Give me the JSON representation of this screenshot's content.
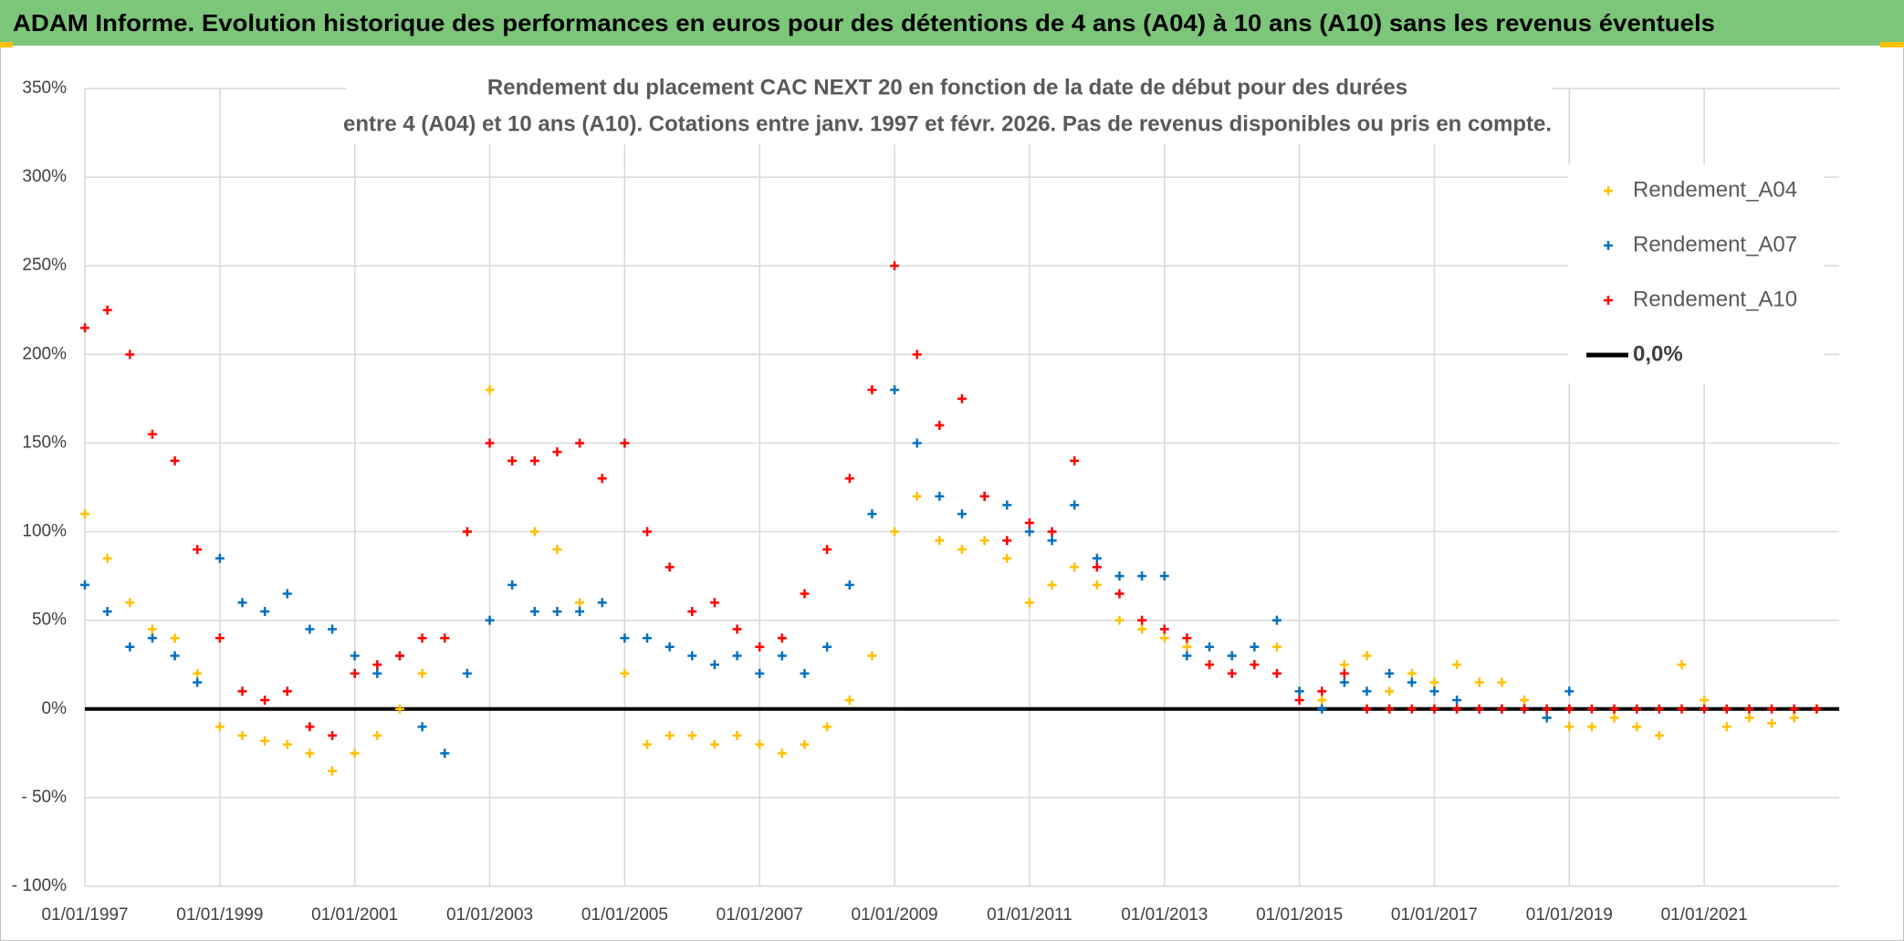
{
  "header": {
    "title": "ADAM Informe. Evolution historique des performances en euros pour des détentions de 4 ans (A04) à 10 ans (A10) sans les revenus éventuels"
  },
  "chart_data": {
    "type": "scatter",
    "title_lines": [
      "Rendement du placement CAC NEXT 20 en fonction de la date de début pour des durées",
      "entre 4 (A04) et 10 ans (A10). Cotations entre janv. 1997 et févr. 2026. Pas de revenus disponibles ou pris en compte."
    ],
    "x": [
      "01/01/1997",
      "01/05/1997",
      "01/09/1997",
      "01/01/1998",
      "01/05/1998",
      "01/09/1998",
      "01/01/1999",
      "01/05/1999",
      "01/09/1999",
      "01/01/2000",
      "01/05/2000",
      "01/09/2000",
      "01/01/2001",
      "01/05/2001",
      "01/09/2001",
      "01/01/2002",
      "01/05/2002",
      "01/09/2002",
      "01/01/2003",
      "01/05/2003",
      "01/09/2003",
      "01/01/2004",
      "01/05/2004",
      "01/09/2004",
      "01/01/2005",
      "01/05/2005",
      "01/09/2005",
      "01/01/2006",
      "01/05/2006",
      "01/09/2006",
      "01/01/2007",
      "01/05/2007",
      "01/09/2007",
      "01/01/2008",
      "01/05/2008",
      "01/09/2008",
      "01/01/2009",
      "01/05/2009",
      "01/09/2009",
      "01/01/2010",
      "01/05/2010",
      "01/09/2010",
      "01/01/2011",
      "01/05/2011",
      "01/09/2011",
      "01/01/2012",
      "01/05/2012",
      "01/09/2012",
      "01/01/2013",
      "01/05/2013",
      "01/09/2013",
      "01/01/2014",
      "01/05/2014",
      "01/09/2014",
      "01/01/2015",
      "01/05/2015",
      "01/09/2015",
      "01/01/2016",
      "01/05/2016",
      "01/09/2016",
      "01/01/2017",
      "01/05/2017",
      "01/09/2017",
      "01/01/2018",
      "01/05/2018",
      "01/09/2018",
      "01/01/2019",
      "01/05/2019",
      "01/09/2019",
      "01/01/2020",
      "01/05/2020",
      "01/09/2020",
      "01/01/2021",
      "01/05/2021",
      "01/09/2021",
      "01/01/2022",
      "01/05/2022",
      "01/09/2022"
    ],
    "series": [
      {
        "name": "Rendement_A04",
        "color": "#ffc000",
        "values": [
          110,
          85,
          60,
          45,
          40,
          20,
          -10,
          -15,
          -18,
          -20,
          -25,
          -35,
          -25,
          -15,
          0,
          20,
          40,
          100,
          180,
          140,
          100,
          90,
          60,
          60,
          20,
          -20,
          -15,
          -15,
          -20,
          -15,
          -20,
          -25,
          -20,
          -10,
          5,
          30,
          100,
          120,
          95,
          90,
          95,
          85,
          60,
          70,
          80,
          70,
          50,
          45,
          40,
          35,
          25,
          30,
          25,
          35,
          10,
          5,
          25,
          30,
          10,
          20,
          15,
          25,
          15,
          15,
          5,
          -5,
          -10,
          -10,
          -5,
          -10,
          -15,
          25,
          5,
          -10,
          -5,
          -8,
          -5,
          0
        ]
      },
      {
        "name": "Rendement_A07",
        "color": "#0070c0",
        "values": [
          70,
          55,
          35,
          40,
          30,
          15,
          85,
          60,
          55,
          65,
          45,
          45,
          30,
          20,
          30,
          -10,
          -25,
          20,
          50,
          70,
          55,
          55,
          55,
          60,
          40,
          40,
          35,
          30,
          25,
          30,
          20,
          30,
          20,
          35,
          70,
          110,
          180,
          150,
          120,
          110,
          120,
          115,
          100,
          95,
          115,
          85,
          75,
          75,
          75,
          30,
          35,
          30,
          35,
          50,
          10,
          0,
          15,
          10,
          20,
          15,
          10,
          5,
          0,
          0,
          0,
          -5,
          10,
          null,
          null,
          null,
          null,
          null,
          null,
          null,
          null,
          null,
          null,
          null
        ]
      },
      {
        "name": "Rendement_A10",
        "color": "#ff0000",
        "values": [
          215,
          225,
          200,
          155,
          140,
          90,
          40,
          10,
          5,
          10,
          -10,
          -15,
          20,
          25,
          30,
          40,
          40,
          100,
          150,
          140,
          140,
          145,
          150,
          130,
          150,
          100,
          80,
          55,
          60,
          45,
          35,
          40,
          65,
          90,
          130,
          180,
          250,
          200,
          160,
          175,
          120,
          95,
          105,
          100,
          140,
          80,
          65,
          50,
          45,
          40,
          25,
          20,
          25,
          20,
          5,
          10,
          20,
          0,
          0,
          0,
          0,
          0,
          0,
          0,
          0,
          0,
          0,
          0,
          0,
          0,
          0,
          0,
          0,
          0,
          0,
          0,
          0,
          0
        ]
      }
    ],
    "reference_line": {
      "name": "0,0%",
      "value": 0,
      "color": "#000000"
    },
    "xlim": [
      "01/01/1997",
      "01/01/2023"
    ],
    "xticks": [
      "01/01/1997",
      "01/01/1999",
      "01/01/2001",
      "01/01/2003",
      "01/01/2005",
      "01/01/2007",
      "01/01/2009",
      "01/01/2011",
      "01/01/2013",
      "01/01/2015",
      "01/01/2017",
      "01/01/2019",
      "01/01/2021"
    ],
    "ylim": [
      -100,
      350
    ],
    "yticks": [
      {
        "value": -100,
        "label": "- 100%"
      },
      {
        "value": -50,
        "label": "- 50%"
      },
      {
        "value": 0,
        "label": "0%"
      },
      {
        "value": 50,
        "label": "50%"
      },
      {
        "value": 100,
        "label": "100%"
      },
      {
        "value": 150,
        "label": "150%"
      },
      {
        "value": 200,
        "label": "200%"
      },
      {
        "value": 250,
        "label": "250%"
      },
      {
        "value": 300,
        "label": "300%"
      },
      {
        "value": 350,
        "label": "350%"
      }
    ],
    "grid": true,
    "legend": "upper right"
  }
}
